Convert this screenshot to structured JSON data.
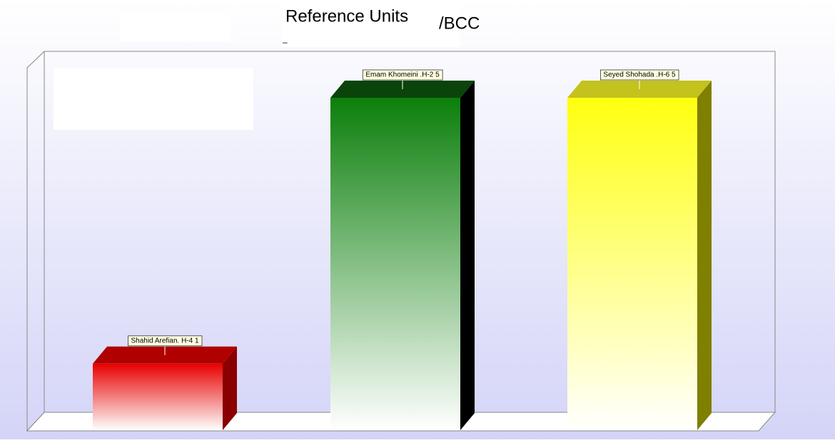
{
  "chart_data": {
    "type": "bar3d",
    "title": "Reference Units",
    "subtitle": "/BCC",
    "annotation": "–",
    "categories": [
      "Shahid Arefian. H-4 1",
      "Emam Khomeini .H-2 5",
      "Seyed Shohada .H-6 5"
    ],
    "values": [
      1,
      5,
      5
    ],
    "series_colors": [
      {
        "front": "#e80000",
        "top": "#b00000",
        "side": "#8a0000"
      },
      {
        "front": "#0b7f0b",
        "top": "#0a440a",
        "side": "#000000"
      },
      {
        "front": "#ffff10",
        "top": "#c4c21c",
        "side": "#7f7f00"
      }
    ]
  }
}
